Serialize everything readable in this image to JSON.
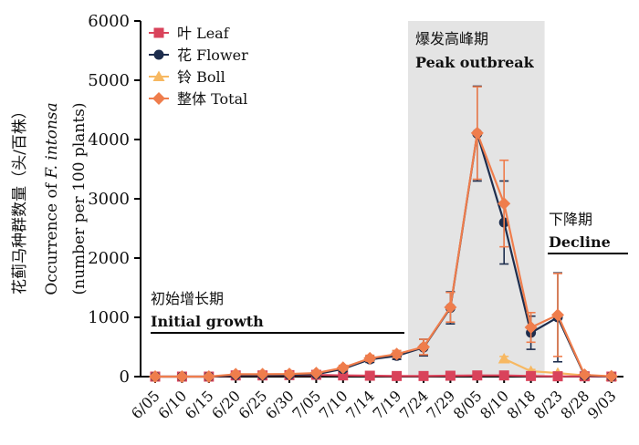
{
  "chart_data": {
    "type": "line",
    "title": "",
    "ylabel_lines": [
      "花蓟马种群数量（头/百株）",
      "Occurrence of F. intonsa",
      "(number per 100 plants)"
    ],
    "xlabel": "",
    "ylim": [
      0,
      6000
    ],
    "yticks": [
      0,
      1000,
      2000,
      3000,
      4000,
      5000,
      6000
    ],
    "categories": [
      "6/05",
      "6/10",
      "6/15",
      "6/20",
      "6/25",
      "6/30",
      "7/05",
      "7/10",
      "7/14",
      "7/19",
      "7/24",
      "7/29",
      "8/05",
      "8/10",
      "8/18",
      "8/23",
      "8/28",
      "9/03"
    ],
    "series": [
      {
        "name": "叶 Leaf",
        "marker": "square",
        "color": "#d9435b",
        "values": [
          0,
          0,
          0,
          20,
          20,
          25,
          30,
          20,
          15,
          10,
          10,
          15,
          20,
          20,
          10,
          5,
          5,
          0
        ],
        "err": [
          0,
          0,
          0,
          5,
          5,
          5,
          5,
          5,
          5,
          5,
          5,
          5,
          5,
          5,
          5,
          5,
          5,
          0
        ]
      },
      {
        "name": "花 Flower",
        "marker": "circle",
        "color": "#1d2d4d",
        "values": [
          0,
          0,
          0,
          25,
          25,
          30,
          40,
          130,
          290,
          350,
          490,
          1160,
          4100,
          2600,
          740,
          1000,
          20,
          0
        ],
        "err": [
          0,
          0,
          0,
          10,
          10,
          10,
          15,
          40,
          50,
          60,
          140,
          270,
          800,
          700,
          280,
          750,
          10,
          0
        ]
      },
      {
        "name": "铃 Boll",
        "marker": "triangle",
        "color": "#f7b861",
        "values": [
          null,
          null,
          null,
          null,
          null,
          null,
          null,
          null,
          null,
          null,
          null,
          null,
          null,
          300,
          90,
          60,
          20,
          5
        ],
        "err": [
          0,
          0,
          0,
          0,
          0,
          0,
          0,
          0,
          0,
          0,
          0,
          0,
          0,
          40,
          30,
          20,
          10,
          0
        ]
      },
      {
        "name": "整体 Total",
        "marker": "diamond",
        "color": "#ef7d4c",
        "values": [
          0,
          0,
          0,
          40,
          40,
          45,
          60,
          150,
          310,
          380,
          500,
          1170,
          4110,
          2920,
          830,
          1040,
          30,
          5
        ],
        "err": [
          0,
          0,
          0,
          10,
          10,
          10,
          15,
          40,
          50,
          60,
          130,
          250,
          780,
          730,
          250,
          700,
          10,
          0
        ]
      }
    ],
    "legend_position": "top-left",
    "phases": [
      {
        "cn": "初始增长期",
        "en": "Initial growth",
        "start": "6/05",
        "end": "7/19",
        "shaded": false
      },
      {
        "cn": "爆发高峰期",
        "en": "Peak outbreak",
        "start": "7/24",
        "end": "8/18",
        "shaded": true
      },
      {
        "cn": "下降期",
        "en": "Decline",
        "start": "8/23",
        "end": "9/03",
        "shaded": false
      }
    ]
  }
}
